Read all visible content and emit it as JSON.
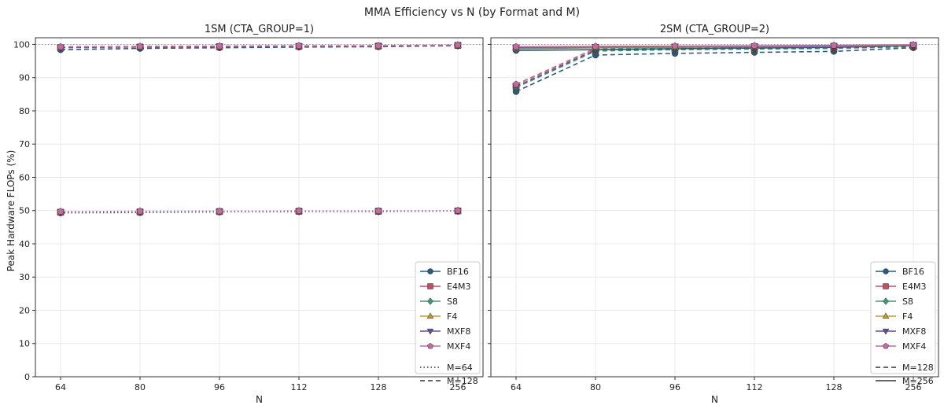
{
  "figure": {
    "title": "MMA Efficiency vs N (by Format and M)",
    "ylabel": "Peak Hardware FLOPs (%)"
  },
  "chart_data": [
    {
      "type": "line",
      "title": "1SM (CTA_GROUP=1)",
      "xlabel": "N",
      "ylabel": "Peak Hardware FLOPs (%)",
      "x": [
        "64",
        "80",
        "96",
        "112",
        "128",
        "256"
      ],
      "ylim": [
        0,
        102
      ],
      "yticks": [
        0,
        10,
        20,
        30,
        40,
        50,
        60,
        70,
        80,
        90,
        100
      ],
      "grid": true,
      "reference_line": 100,
      "legend_position": "lower-right",
      "style_legend": [
        {
          "label": "M=64",
          "dash": "dotted"
        },
        {
          "label": "M=128",
          "dash": "dashed"
        }
      ],
      "series": [
        {
          "name": "BF16",
          "m": "M=64",
          "values": [
            49.3,
            49.4,
            49.6,
            49.7,
            49.7,
            49.9
          ]
        },
        {
          "name": "E4M3",
          "m": "M=64",
          "values": [
            49.5,
            49.6,
            49.7,
            49.8,
            49.8,
            49.9
          ]
        },
        {
          "name": "S8",
          "m": "M=64",
          "values": [
            49.6,
            49.7,
            49.7,
            49.8,
            49.8,
            49.9
          ]
        },
        {
          "name": "F4",
          "m": "M=64",
          "values": [
            49.7,
            49.8,
            49.8,
            49.9,
            49.9,
            50.0
          ]
        },
        {
          "name": "MXF8",
          "m": "M=64",
          "values": [
            49.5,
            49.6,
            49.7,
            49.8,
            49.8,
            49.9
          ]
        },
        {
          "name": "MXF4",
          "m": "M=64",
          "values": [
            49.7,
            49.8,
            49.8,
            49.9,
            49.9,
            50.0
          ]
        },
        {
          "name": "BF16",
          "m": "M=128",
          "values": [
            98.4,
            98.8,
            99.0,
            99.2,
            99.3,
            99.6
          ]
        },
        {
          "name": "E4M3",
          "m": "M=128",
          "values": [
            99.0,
            99.2,
            99.3,
            99.4,
            99.5,
            99.7
          ]
        },
        {
          "name": "S8",
          "m": "M=128",
          "values": [
            99.1,
            99.3,
            99.4,
            99.5,
            99.5,
            99.7
          ]
        },
        {
          "name": "F4",
          "m": "M=128",
          "values": [
            99.2,
            99.3,
            99.4,
            99.5,
            99.6,
            99.7
          ]
        },
        {
          "name": "MXF8",
          "m": "M=128",
          "values": [
            99.1,
            99.3,
            99.4,
            99.5,
            99.5,
            99.7
          ]
        },
        {
          "name": "MXF4",
          "m": "M=128",
          "values": [
            99.3,
            99.4,
            99.5,
            99.6,
            99.6,
            99.8
          ]
        }
      ]
    },
    {
      "type": "line",
      "title": "2SM (CTA_GROUP=2)",
      "xlabel": "N",
      "ylabel": "",
      "x": [
        "64",
        "80",
        "96",
        "112",
        "128",
        "256"
      ],
      "ylim": [
        0,
        102
      ],
      "yticks": [
        0,
        10,
        20,
        30,
        40,
        50,
        60,
        70,
        80,
        90,
        100
      ],
      "grid": true,
      "reference_line": 100,
      "legend_position": "lower-right",
      "style_legend": [
        {
          "label": "M=128",
          "dash": "dashed"
        },
        {
          "label": "M=256",
          "dash": "solid"
        }
      ],
      "series": [
        {
          "name": "BF16",
          "m": "M=128",
          "values": [
            85.8,
            96.8,
            97.3,
            97.6,
            97.9,
            99.0
          ]
        },
        {
          "name": "E4M3",
          "m": "M=128",
          "values": [
            87.3,
            98.2,
            98.5,
            98.7,
            98.9,
            99.4
          ]
        },
        {
          "name": "S8",
          "m": "M=128",
          "values": [
            87.0,
            98.0,
            98.4,
            98.6,
            98.8,
            99.3
          ]
        },
        {
          "name": "F4",
          "m": "M=128",
          "values": [
            87.8,
            98.6,
            98.9,
            99.0,
            99.2,
            99.5
          ]
        },
        {
          "name": "MXF8",
          "m": "M=128",
          "values": [
            87.3,
            98.3,
            98.6,
            98.8,
            99.0,
            99.4
          ]
        },
        {
          "name": "MXF4",
          "m": "M=128",
          "values": [
            88.0,
            98.8,
            99.0,
            99.1,
            99.3,
            99.6
          ]
        },
        {
          "name": "BF16",
          "m": "M=256",
          "values": [
            98.2,
            98.4,
            98.7,
            98.9,
            99.1,
            99.6
          ]
        },
        {
          "name": "E4M3",
          "m": "M=256",
          "values": [
            98.8,
            99.1,
            99.2,
            99.3,
            99.4,
            99.7
          ]
        },
        {
          "name": "S8",
          "m": "M=256",
          "values": [
            98.7,
            99.0,
            99.1,
            99.3,
            99.4,
            99.7
          ]
        },
        {
          "name": "F4",
          "m": "M=256",
          "values": [
            99.0,
            99.2,
            99.3,
            99.4,
            99.5,
            99.8
          ]
        },
        {
          "name": "MXF8",
          "m": "M=256",
          "values": [
            99.1,
            99.3,
            99.4,
            99.5,
            99.6,
            99.8
          ]
        },
        {
          "name": "MXF4",
          "m": "M=256",
          "values": [
            99.3,
            99.4,
            99.5,
            99.6,
            99.7,
            99.9
          ]
        }
      ]
    }
  ],
  "formats": [
    {
      "name": "BF16",
      "color": "#2b5a7a",
      "marker": "circle"
    },
    {
      "name": "E4M3",
      "color": "#c44e64",
      "marker": "square"
    },
    {
      "name": "S8",
      "color": "#3f9a72",
      "marker": "diamond"
    },
    {
      "name": "F4",
      "color": "#c29a2e",
      "marker": "triangle-up"
    },
    {
      "name": "MXF8",
      "color": "#6b4c9a",
      "marker": "triangle-down"
    },
    {
      "name": "MXF4",
      "color": "#c46aa0",
      "marker": "pentagon"
    }
  ]
}
